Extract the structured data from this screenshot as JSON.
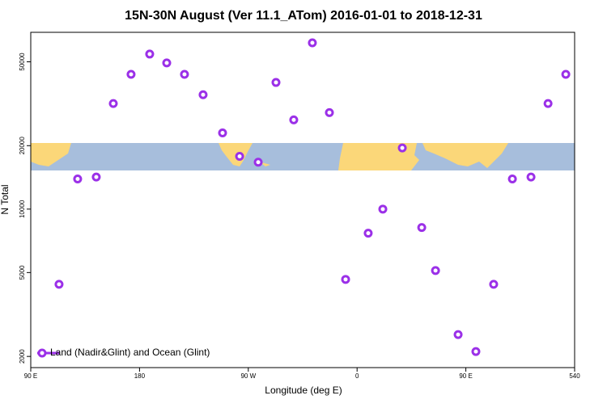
{
  "chart_data": {
    "type": "scatter",
    "title": "15N-30N August (Ver 11.1_ATom)   2016-01-01 to 2018-12-31",
    "xlabel": "Longitude (deg E)",
    "ylabel": "N Total",
    "xlim": [
      90,
      540
    ],
    "ylim": [
      1770,
      69000
    ],
    "ylog": true,
    "xticks": [
      {
        "value": 90,
        "label": "90 E"
      },
      180,
      {
        "value": 270,
        "label": "90 W"
      },
      {
        "value": 360,
        "label": "0"
      },
      {
        "value": 450,
        "label": "90 E"
      },
      540
    ],
    "yticks": [
      2000,
      5000,
      10000,
      20000,
      50000
    ],
    "legend": "bottomleft",
    "series": [
      {
        "name": "Land (Nadir&Glint) and Ocean (Glint)",
        "color": "#9b30e8",
        "x": [
          113.4,
          128.8,
          144.2,
          158.3,
          173,
          188.4,
          202.5,
          217.2,
          232.6,
          248.7,
          262.8,
          278.2,
          292.9,
          307.6,
          323,
          337.1,
          350.5,
          369.2,
          381.3,
          397.4,
          413.5,
          424.9,
          443.6,
          458.3,
          473,
          488.5,
          503.9,
          518,
          532.7
        ],
        "values": [
          4400,
          13900,
          14200,
          31700,
          43600,
          54400,
          49400,
          43600,
          34900,
          23000,
          17800,
          16700,
          39900,
          26500,
          61500,
          28700,
          4640,
          7690,
          10000,
          19500,
          8180,
          5110,
          2540,
          2110,
          4400,
          13900,
          14200,
          31700,
          43600
        ]
      }
    ]
  }
}
